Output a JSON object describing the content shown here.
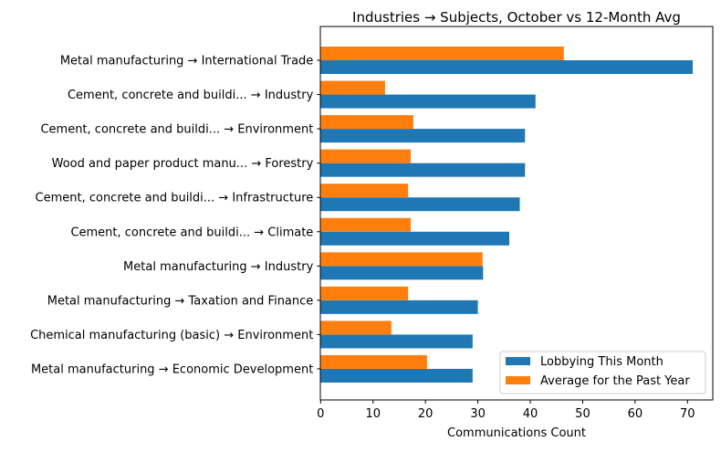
{
  "chart_data": {
    "type": "bar",
    "orientation": "horizontal",
    "title": "Industries → Subjects, October vs 12-Month Avg",
    "xlabel": "Communications Count",
    "ylabel": "",
    "xlim": [
      0,
      74.6
    ],
    "xticks": [
      0,
      10,
      20,
      30,
      40,
      50,
      60,
      70
    ],
    "grid": false,
    "legend_placement": "lower-right",
    "categories": [
      "Metal manufacturing → International Trade",
      "Cement, concrete and buildi... → Industry",
      "Cement, concrete and buildi... → Environment",
      "Wood and paper product manu... → Forestry",
      "Cement, concrete and buildi... → Infrastructure",
      "Cement, concrete and buildi... → Climate",
      "Metal manufacturing → Industry",
      "Metal manufacturing → Taxation and Finance",
      "Chemical manufacturing (basic) → Environment",
      "Metal manufacturing → Economic Development"
    ],
    "series": [
      {
        "name": "Lobbying This Month",
        "color": "#1f77b4",
        "values": [
          71,
          41,
          39,
          39,
          38,
          36,
          31,
          30,
          29,
          29
        ]
      },
      {
        "name": "Average for the Past Year",
        "color": "#ff7f0e",
        "values": [
          46.4,
          12.3,
          17.7,
          17.2,
          16.7,
          17.2,
          30.9,
          16.7,
          13.5,
          20.3
        ]
      }
    ]
  }
}
